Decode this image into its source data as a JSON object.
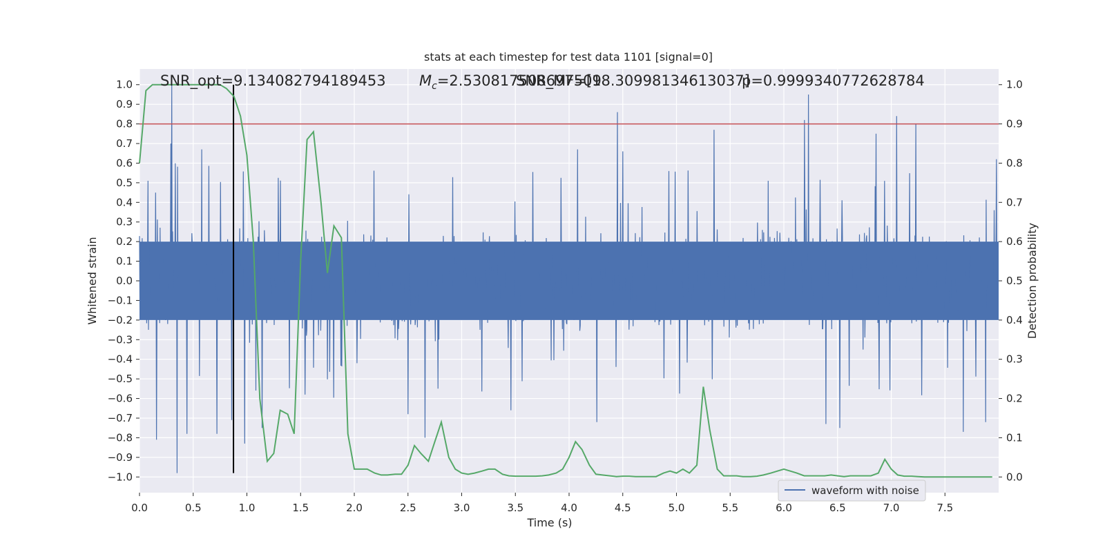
{
  "chart_data": {
    "type": "line",
    "title": "stats at each timestep for test data 1101 [signal=0]",
    "xlabel": "Time (s)",
    "ylabel": "Whitened strain",
    "y2label": "Detection probability",
    "xlim": [
      0.0,
      8.0
    ],
    "ylim": [
      -1.08,
      1.08
    ],
    "y2lim": [
      -0.04,
      1.04
    ],
    "x_ticks": [
      0.0,
      0.5,
      1.0,
      1.5,
      2.0,
      2.5,
      3.0,
      3.5,
      4.0,
      4.5,
      5.0,
      5.5,
      6.0,
      6.5,
      7.0,
      7.5
    ],
    "x_tick_labels": [
      "0.0",
      "0.5",
      "1.0",
      "1.5",
      "2.0",
      "2.5",
      "3.0",
      "3.5",
      "4.0",
      "4.5",
      "5.0",
      "5.5",
      "6.0",
      "6.5",
      "7.0",
      "7.5"
    ],
    "y_ticks": [
      1.0,
      0.9,
      0.8,
      0.7,
      0.6,
      0.5,
      0.4,
      0.3,
      0.2,
      0.1,
      0.0,
      -0.1,
      -0.2,
      -0.3,
      -0.4,
      -0.5,
      -0.6,
      -0.7,
      -0.8,
      -0.9,
      -1.0
    ],
    "y_tick_labels": [
      "1.0",
      "0.9",
      "0.8",
      "0.7",
      "0.6",
      "0.5",
      "0.4",
      "0.3",
      "0.2",
      "0.1",
      "0.0",
      "−0.1",
      "−0.2",
      "−0.3",
      "−0.4",
      "−0.5",
      "−0.6",
      "−0.7",
      "−0.8",
      "−0.9",
      "−1.0"
    ],
    "y2_ticks": [
      1.0,
      0.9,
      0.8,
      0.7,
      0.6,
      0.5,
      0.4,
      0.3,
      0.2,
      0.1,
      0.0
    ],
    "y2_tick_labels": [
      "1.0",
      "0.9",
      "0.8",
      "0.7",
      "0.6",
      "0.5",
      "0.4",
      "0.3",
      "0.2",
      "0.1",
      "0.0"
    ],
    "threshold": {
      "y2": 0.9,
      "color": "#c44e52"
    },
    "marker_line": {
      "x": 0.875,
      "color": "#000000"
    },
    "annotations": {
      "snr_opt": "SNR_opt=9.134082794189453",
      "mc_label": "M",
      "mc_sub": "c",
      "mc_value": "=2.530817508697509",
      "snr_mf": "SNR_MF=[18.30998134613037]",
      "p_value": "p=0.9999340772628784"
    },
    "legend": {
      "label": "waveform with noise",
      "location": "lower right"
    },
    "colors": {
      "waveform": "#4c72b0",
      "probability": "#55a868",
      "background": "#eaeaf2",
      "grid": "#ffffff"
    },
    "waveform_envelope": {
      "sample_rate_hz": 240,
      "typical_amplitude": 0.4,
      "spikes": [
        {
          "t": 0.08,
          "v": 0.51
        },
        {
          "t": 0.15,
          "v": 0.45
        },
        {
          "t": 0.29,
          "v": 0.7
        },
        {
          "t": 0.3,
          "v": 1.0
        },
        {
          "t": 0.35,
          "v": -0.98
        },
        {
          "t": 0.16,
          "v": -0.81
        },
        {
          "t": 0.44,
          "v": -0.78
        },
        {
          "t": 0.58,
          "v": 0.67
        },
        {
          "t": 0.72,
          "v": -0.78
        },
        {
          "t": 0.86,
          "v": -0.71
        },
        {
          "t": 0.98,
          "v": -0.83
        },
        {
          "t": 1.14,
          "v": -0.75
        },
        {
          "t": 1.54,
          "v": -0.58
        },
        {
          "t": 2.5,
          "v": -0.68
        },
        {
          "t": 2.66,
          "v": -0.8
        },
        {
          "t": 2.78,
          "v": -0.55
        },
        {
          "t": 3.46,
          "v": -0.66
        },
        {
          "t": 4.08,
          "v": 0.67
        },
        {
          "t": 4.26,
          "v": -0.72
        },
        {
          "t": 4.45,
          "v": 0.86
        },
        {
          "t": 4.5,
          "v": 0.66
        },
        {
          "t": 5.35,
          "v": 0.77
        },
        {
          "t": 6.23,
          "v": 0.95
        },
        {
          "t": 6.19,
          "v": 0.82
        },
        {
          "t": 5.86,
          "v": -0.11
        },
        {
          "t": 6.39,
          "v": -0.73
        },
        {
          "t": 6.52,
          "v": -0.75
        },
        {
          "t": 6.86,
          "v": 0.75
        },
        {
          "t": 7.05,
          "v": 0.84
        },
        {
          "t": 7.23,
          "v": 0.8
        },
        {
          "t": 7.67,
          "v": -0.77
        },
        {
          "t": 7.88,
          "v": -0.72
        },
        {
          "t": 7.98,
          "v": 0.62
        }
      ]
    },
    "series": [
      {
        "name": "detection probability",
        "axis": "y2",
        "x": [
          0.0,
          0.06,
          0.12,
          0.19,
          0.25,
          0.31,
          0.38,
          0.44,
          0.5,
          0.56,
          0.62,
          0.69,
          0.75,
          0.81,
          0.88,
          0.94,
          1.0,
          1.06,
          1.12,
          1.19,
          1.25,
          1.31,
          1.38,
          1.44,
          1.5,
          1.56,
          1.62,
          1.69,
          1.75,
          1.81,
          1.88,
          1.94,
          2.0,
          2.06,
          2.12,
          2.19,
          2.25,
          2.31,
          2.38,
          2.44,
          2.5,
          2.56,
          2.62,
          2.69,
          2.75,
          2.81,
          2.88,
          2.94,
          3.0,
          3.06,
          3.12,
          3.19,
          3.25,
          3.31,
          3.38,
          3.44,
          3.5,
          3.56,
          3.62,
          3.69,
          3.75,
          3.81,
          3.88,
          3.94,
          4.0,
          4.06,
          4.12,
          4.19,
          4.25,
          4.31,
          4.38,
          4.44,
          4.5,
          4.56,
          4.62,
          4.69,
          4.75,
          4.81,
          4.88,
          4.94,
          5.0,
          5.06,
          5.12,
          5.19,
          5.25,
          5.31,
          5.38,
          5.44,
          5.5,
          5.56,
          5.62,
          5.69,
          5.75,
          5.81,
          5.88,
          5.94,
          6.0,
          6.06,
          6.12,
          6.19,
          6.25,
          6.31,
          6.38,
          6.44,
          6.5,
          6.56,
          6.62,
          6.69,
          6.75,
          6.81,
          6.88,
          6.94,
          7.0,
          7.06,
          7.12,
          7.19,
          7.25,
          7.31,
          7.38,
          7.44,
          7.5,
          7.56,
          7.62,
          7.69,
          7.75,
          7.81,
          7.88,
          7.94
        ],
        "values": [
          0.8,
          0.985,
          1.0,
          1.0,
          1.0,
          1.0,
          1.0,
          1.0,
          1.0,
          1.0,
          1.0,
          1.0,
          1.0,
          0.99,
          0.97,
          0.92,
          0.82,
          0.6,
          0.2,
          0.04,
          0.06,
          0.17,
          0.16,
          0.11,
          0.55,
          0.86,
          0.88,
          0.7,
          0.52,
          0.64,
          0.61,
          0.11,
          0.02,
          0.02,
          0.02,
          0.01,
          0.005,
          0.005,
          0.007,
          0.007,
          0.03,
          0.08,
          0.06,
          0.04,
          0.09,
          0.14,
          0.05,
          0.02,
          0.01,
          0.007,
          0.01,
          0.015,
          0.02,
          0.02,
          0.007,
          0.003,
          0.002,
          0.002,
          0.002,
          0.002,
          0.003,
          0.005,
          0.01,
          0.02,
          0.05,
          0.09,
          0.07,
          0.03,
          0.007,
          0.005,
          0.003,
          0.001,
          0.002,
          0.002,
          0.001,
          0.001,
          0.001,
          0.001,
          0.01,
          0.015,
          0.01,
          0.02,
          0.01,
          0.03,
          0.23,
          0.12,
          0.02,
          0.003,
          0.003,
          0.003,
          0.001,
          0.001,
          0.002,
          0.005,
          0.01,
          0.015,
          0.02,
          0.015,
          0.01,
          0.003,
          0.003,
          0.003,
          0.003,
          0.005,
          0.003,
          0.001,
          0.003,
          0.003,
          0.003,
          0.003,
          0.01,
          0.045,
          0.02,
          0.005,
          0.002,
          0.002,
          0.001,
          0.0,
          0.0,
          0.0,
          0.0,
          0.0,
          0.0,
          0.0,
          0.0,
          0.0,
          0.0,
          0.0
        ]
      }
    ]
  }
}
